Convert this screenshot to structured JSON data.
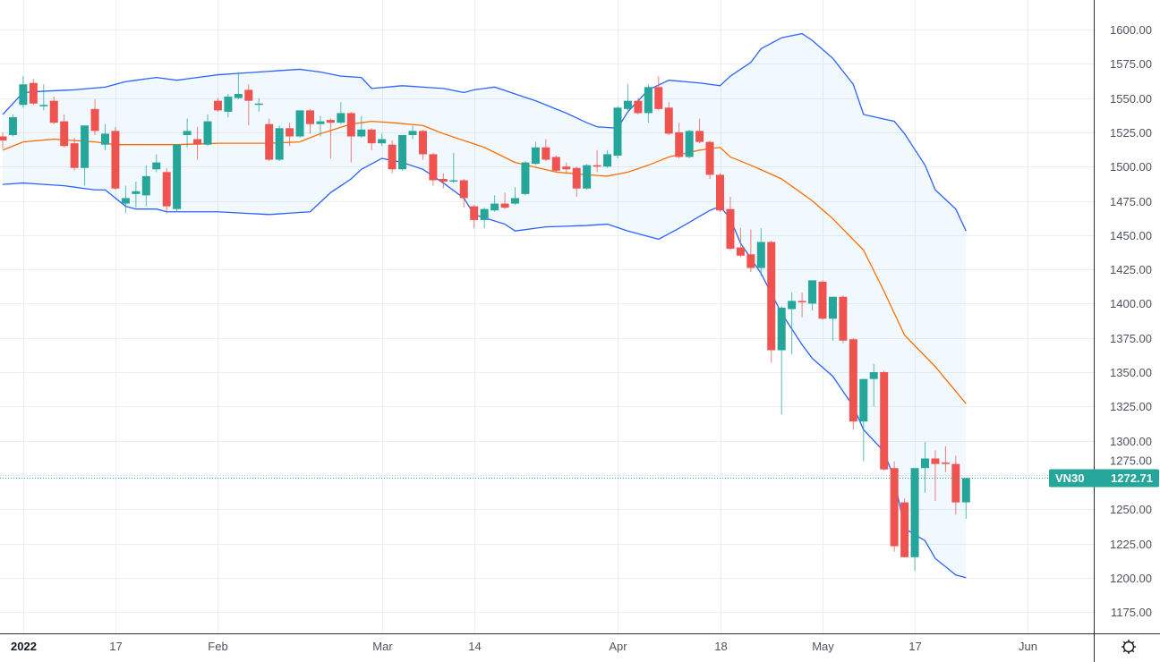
{
  "chart_data": {
    "type": "candlestick",
    "symbol": "VN30",
    "last_price": "1272.71",
    "colors": {
      "up": "#26a69a",
      "down": "#ef5350",
      "bb_bands": "#2962ff",
      "bb_basis": "#ff6d00",
      "bb_fill": "#2196f3"
    },
    "ylim": [
      1160,
      1612
    ],
    "y_ticks": [
      "1600.00",
      "1575.00",
      "1550.00",
      "1525.00",
      "1500.00",
      "1475.00",
      "1450.00",
      "1425.00",
      "1400.00",
      "1375.00",
      "1350.00",
      "1325.00",
      "1300.00",
      "1275.00",
      "1250.00",
      "1225.00",
      "1200.00",
      "1175.00"
    ],
    "x_ticks": [
      {
        "label": "2022",
        "date": "2022-01-04",
        "bold": true
      },
      {
        "label": "17",
        "date": "2022-01-17"
      },
      {
        "label": "Feb",
        "date": "2022-02-07"
      },
      {
        "label": "Mar",
        "date": "2022-03-01"
      },
      {
        "label": "14",
        "date": "2022-03-14"
      },
      {
        "label": "Apr",
        "date": "2022-04-01"
      },
      {
        "label": "18",
        "date": "2022-04-18"
      },
      {
        "label": "May",
        "date": "2022-05-04"
      },
      {
        "label": "17",
        "date": "2022-05-17"
      },
      {
        "label": "Jun",
        "date": "2022-06-01"
      }
    ],
    "candle_fields": [
      "date",
      "open",
      "high",
      "low",
      "close"
    ],
    "candles": [
      [
        "2021-12-30",
        1522,
        1525,
        1513,
        1519
      ],
      [
        "2021-12-31",
        1523,
        1538,
        1522,
        1536
      ],
      [
        "2022-01-04",
        1545,
        1566,
        1543,
        1560
      ],
      [
        "2022-01-05",
        1561,
        1564,
        1545,
        1546
      ],
      [
        "2022-01-06",
        1544,
        1560,
        1541,
        1545
      ],
      [
        "2022-01-07",
        1548,
        1551,
        1531,
        1532
      ],
      [
        "2022-01-10",
        1533,
        1538,
        1514,
        1515
      ],
      [
        "2022-01-11",
        1517,
        1521,
        1497,
        1499
      ],
      [
        "2022-01-12",
        1499,
        1530,
        1486,
        1530
      ],
      [
        "2022-01-13",
        1542,
        1549,
        1523,
        1526
      ],
      [
        "2022-01-14",
        1516,
        1531,
        1512,
        1524
      ],
      [
        "2022-01-17",
        1526,
        1529,
        1483,
        1484
      ],
      [
        "2022-01-18",
        1473,
        1486,
        1466,
        1477
      ],
      [
        "2022-01-19",
        1480,
        1489,
        1470,
        1482
      ],
      [
        "2022-01-20",
        1479,
        1501,
        1471,
        1493
      ],
      [
        "2022-01-21",
        1498,
        1509,
        1496,
        1503
      ],
      [
        "2022-01-24",
        1496,
        1499,
        1466,
        1471
      ],
      [
        "2022-01-25",
        1469,
        1516,
        1467,
        1516
      ],
      [
        "2022-01-26",
        1523,
        1535,
        1514,
        1526
      ],
      [
        "2022-01-27",
        1520,
        1529,
        1505,
        1516
      ],
      [
        "2022-01-28",
        1516,
        1538,
        1515,
        1533
      ],
      [
        "2022-02-07",
        1548,
        1550,
        1540,
        1541
      ],
      [
        "2022-02-08",
        1540,
        1553,
        1536,
        1551
      ],
      [
        "2022-02-09",
        1550,
        1569,
        1549,
        1553
      ],
      [
        "2022-02-10",
        1556,
        1560,
        1530,
        1548
      ],
      [
        "2022-02-11",
        1545,
        1550,
        1540,
        1546
      ],
      [
        "2022-02-14",
        1531,
        1535,
        1504,
        1505
      ],
      [
        "2022-02-15",
        1505,
        1530,
        1504,
        1528
      ],
      [
        "2022-02-16",
        1528,
        1532,
        1515,
        1522
      ],
      [
        "2022-02-17",
        1522,
        1541,
        1521,
        1541
      ],
      [
        "2022-02-18",
        1541,
        1542,
        1524,
        1531
      ],
      [
        "2022-02-21",
        1531,
        1537,
        1522,
        1533
      ],
      [
        "2022-02-22",
        1534,
        1535,
        1506,
        1532
      ],
      [
        "2022-02-23",
        1532,
        1547,
        1531,
        1539
      ],
      [
        "2022-02-24",
        1539,
        1540,
        1503,
        1522
      ],
      [
        "2022-02-25",
        1522,
        1537,
        1521,
        1527
      ],
      [
        "2022-02-28",
        1527,
        1528,
        1512,
        1517
      ],
      [
        "2022-03-01",
        1517,
        1524,
        1515,
        1520
      ],
      [
        "2022-03-02",
        1516,
        1519,
        1495,
        1498
      ],
      [
        "2022-03-03",
        1498,
        1523,
        1497,
        1523
      ],
      [
        "2022-03-04",
        1523,
        1530,
        1520,
        1526
      ],
      [
        "2022-03-07",
        1526,
        1527,
        1505,
        1509
      ],
      [
        "2022-03-08",
        1509,
        1510,
        1486,
        1490
      ],
      [
        "2022-03-09",
        1491,
        1495,
        1484,
        1489
      ],
      [
        "2022-03-10",
        1489,
        1510,
        1488,
        1490
      ],
      [
        "2022-03-11",
        1490,
        1491,
        1470,
        1477
      ],
      [
        "2022-03-14",
        1471,
        1472,
        1455,
        1461
      ],
      [
        "2022-03-15",
        1461,
        1470,
        1455,
        1469
      ],
      [
        "2022-03-16",
        1468,
        1479,
        1467,
        1473
      ],
      [
        "2022-03-17",
        1473,
        1481,
        1469,
        1470
      ],
      [
        "2022-03-18",
        1473,
        1485,
        1472,
        1477
      ],
      [
        "2022-03-21",
        1480,
        1504,
        1479,
        1503
      ],
      [
        "2022-03-22",
        1502,
        1518,
        1501,
        1514
      ],
      [
        "2022-03-23",
        1514,
        1520,
        1504,
        1505
      ],
      [
        "2022-03-24",
        1507,
        1508,
        1496,
        1497
      ],
      [
        "2022-03-25",
        1500,
        1503,
        1495,
        1498
      ],
      [
        "2022-03-28",
        1499,
        1500,
        1478,
        1484
      ],
      [
        "2022-03-29",
        1484,
        1502,
        1483,
        1501
      ],
      [
        "2022-03-30",
        1501,
        1512,
        1496,
        1500
      ],
      [
        "2022-03-31",
        1500,
        1512,
        1499,
        1509
      ],
      [
        "2022-04-01",
        1508,
        1544,
        1506,
        1543
      ],
      [
        "2022-04-04",
        1542,
        1560,
        1541,
        1548
      ],
      [
        "2022-04-05",
        1548,
        1550,
        1538,
        1539
      ],
      [
        "2022-04-06",
        1539,
        1560,
        1532,
        1558
      ],
      [
        "2022-04-07",
        1558,
        1566,
        1541,
        1542
      ],
      [
        "2022-04-08",
        1543,
        1547,
        1523,
        1524
      ],
      [
        "2022-04-12",
        1525,
        1532,
        1506,
        1507
      ],
      [
        "2022-04-13",
        1507,
        1527,
        1506,
        1526
      ],
      [
        "2022-04-14",
        1526,
        1535,
        1517,
        1518
      ],
      [
        "2022-04-15",
        1518,
        1519,
        1491,
        1494
      ],
      [
        "2022-04-18",
        1494,
        1495,
        1467,
        1468
      ],
      [
        "2022-04-19",
        1469,
        1478,
        1439,
        1440
      ],
      [
        "2022-04-20",
        1441,
        1455,
        1434,
        1435
      ],
      [
        "2022-04-21",
        1436,
        1454,
        1423,
        1426
      ],
      [
        "2022-04-22",
        1426,
        1455,
        1420,
        1445
      ],
      [
        "2022-04-25",
        1445,
        1446,
        1357,
        1366
      ],
      [
        "2022-04-26",
        1366,
        1398,
        1319,
        1397
      ],
      [
        "2022-04-27",
        1396,
        1408,
        1363,
        1402
      ],
      [
        "2022-04-28",
        1402,
        1408,
        1390,
        1401
      ],
      [
        "2022-04-29",
        1400,
        1417,
        1395,
        1417
      ],
      [
        "2022-05-04",
        1416,
        1417,
        1388,
        1389
      ],
      [
        "2022-05-05",
        1389,
        1405,
        1373,
        1405
      ],
      [
        "2022-05-06",
        1405,
        1406,
        1371,
        1373
      ],
      [
        "2022-05-09",
        1374,
        1375,
        1308,
        1314
      ],
      [
        "2022-05-10",
        1314,
        1345,
        1285,
        1345
      ],
      [
        "2022-05-11",
        1345,
        1356,
        1325,
        1350
      ],
      [
        "2022-05-12",
        1350,
        1351,
        1278,
        1279
      ],
      [
        "2022-05-13",
        1280,
        1285,
        1219,
        1223
      ],
      [
        "2022-05-16",
        1255,
        1258,
        1215,
        1215
      ],
      [
        "2022-05-17",
        1215,
        1280,
        1205,
        1280
      ],
      [
        "2022-05-18",
        1280,
        1299,
        1262,
        1287
      ],
      [
        "2022-05-19",
        1287,
        1293,
        1256,
        1283
      ],
      [
        "2022-05-20",
        1284,
        1296,
        1277,
        1283
      ],
      [
        "2022-05-23",
        1283,
        1289,
        1246,
        1255
      ],
      [
        "2022-05-24",
        1255,
        1273,
        1243,
        1272.71
      ]
    ],
    "bollinger": {
      "upper": [
        [
          "2021-12-30",
          1538
        ],
        [
          "2022-01-04",
          1554
        ],
        [
          "2022-01-06",
          1555
        ],
        [
          "2022-01-11",
          1556
        ],
        [
          "2022-01-14",
          1558
        ],
        [
          "2022-01-18",
          1562
        ],
        [
          "2022-01-21",
          1565
        ],
        [
          "2022-01-25",
          1563
        ],
        [
          "2022-02-07",
          1567
        ],
        [
          "2022-02-11",
          1569
        ],
        [
          "2022-02-17",
          1571
        ],
        [
          "2022-02-21",
          1569
        ],
        [
          "2022-02-23",
          1566
        ],
        [
          "2022-02-25",
          1565
        ],
        [
          "2022-02-28",
          1557
        ],
        [
          "2022-03-03",
          1559
        ],
        [
          "2022-03-09",
          1557
        ],
        [
          "2022-03-11",
          1554
        ],
        [
          "2022-03-14",
          1556
        ],
        [
          "2022-03-16",
          1558
        ],
        [
          "2022-03-22",
          1548
        ],
        [
          "2022-03-25",
          1539
        ],
        [
          "2022-03-29",
          1532
        ],
        [
          "2022-03-30",
          1529
        ],
        [
          "2022-04-01",
          1528
        ],
        [
          "2022-04-04",
          1540
        ],
        [
          "2022-04-06",
          1556
        ],
        [
          "2022-04-08",
          1563
        ],
        [
          "2022-04-14",
          1561
        ],
        [
          "2022-04-18",
          1559
        ],
        [
          "2022-04-19",
          1566
        ],
        [
          "2022-04-21",
          1576
        ],
        [
          "2022-04-22",
          1586
        ],
        [
          "2022-04-26",
          1594
        ],
        [
          "2022-04-28",
          1597
        ],
        [
          "2022-04-29",
          1592
        ],
        [
          "2022-05-05",
          1579
        ],
        [
          "2022-05-09",
          1560
        ],
        [
          "2022-05-10",
          1538
        ],
        [
          "2022-05-13",
          1533
        ],
        [
          "2022-05-16",
          1524
        ],
        [
          "2022-05-18",
          1501
        ],
        [
          "2022-05-19",
          1483
        ],
        [
          "2022-05-23",
          1469
        ],
        [
          "2022-05-24",
          1453
        ]
      ],
      "basis": [
        [
          "2021-12-30",
          1512
        ],
        [
          "2022-01-04",
          1518
        ],
        [
          "2022-01-07",
          1520
        ],
        [
          "2022-01-13",
          1518
        ],
        [
          "2022-01-17",
          1516
        ],
        [
          "2022-01-20",
          1516
        ],
        [
          "2022-01-25",
          1516
        ],
        [
          "2022-02-07",
          1517
        ],
        [
          "2022-02-14",
          1517
        ],
        [
          "2022-02-17",
          1518
        ],
        [
          "2022-02-21",
          1524
        ],
        [
          "2022-02-24",
          1531
        ],
        [
          "2022-02-28",
          1533
        ],
        [
          "2022-03-02",
          1532
        ],
        [
          "2022-03-07",
          1530
        ],
        [
          "2022-03-09",
          1524
        ],
        [
          "2022-03-15",
          1514
        ],
        [
          "2022-03-18",
          1503
        ],
        [
          "2022-03-24",
          1496
        ],
        [
          "2022-03-29",
          1494
        ],
        [
          "2022-03-31",
          1493
        ],
        [
          "2022-04-04",
          1496
        ],
        [
          "2022-04-06",
          1501
        ],
        [
          "2022-04-08",
          1507
        ],
        [
          "2022-04-14",
          1512
        ],
        [
          "2022-04-18",
          1514
        ],
        [
          "2022-04-19",
          1507
        ],
        [
          "2022-04-21",
          1501
        ],
        [
          "2022-04-26",
          1491
        ],
        [
          "2022-04-29",
          1475
        ],
        [
          "2022-05-05",
          1462
        ],
        [
          "2022-05-10",
          1439
        ],
        [
          "2022-05-12",
          1409
        ],
        [
          "2022-05-16",
          1377
        ],
        [
          "2022-05-19",
          1354
        ],
        [
          "2022-05-24",
          1327
        ]
      ],
      "lower": [
        [
          "2021-12-30",
          1487
        ],
        [
          "2022-01-04",
          1488
        ],
        [
          "2022-01-10",
          1486
        ],
        [
          "2022-01-13",
          1483
        ],
        [
          "2022-01-14",
          1483
        ],
        [
          "2022-01-18",
          1471
        ],
        [
          "2022-01-19",
          1469
        ],
        [
          "2022-01-21",
          1469
        ],
        [
          "2022-01-24",
          1467
        ],
        [
          "2022-02-07",
          1467
        ],
        [
          "2022-02-14",
          1465
        ],
        [
          "2022-02-18",
          1467
        ],
        [
          "2022-02-22",
          1481
        ],
        [
          "2022-02-24",
          1491
        ],
        [
          "2022-02-25",
          1498
        ],
        [
          "2022-03-01",
          1506
        ],
        [
          "2022-03-03",
          1503
        ],
        [
          "2022-03-07",
          1498
        ],
        [
          "2022-03-09",
          1488
        ],
        [
          "2022-03-11",
          1477
        ],
        [
          "2022-03-14",
          1465
        ],
        [
          "2022-03-17",
          1458
        ],
        [
          "2022-03-18",
          1453
        ],
        [
          "2022-03-23",
          1456
        ],
        [
          "2022-03-29",
          1457
        ],
        [
          "2022-03-31",
          1458
        ],
        [
          "2022-04-04",
          1453
        ],
        [
          "2022-04-06",
          1449
        ],
        [
          "2022-04-07",
          1447
        ],
        [
          "2022-04-12",
          1455
        ],
        [
          "2022-04-15",
          1468
        ],
        [
          "2022-04-18",
          1471
        ],
        [
          "2022-04-19",
          1462
        ],
        [
          "2022-04-20",
          1444
        ],
        [
          "2022-04-22",
          1422
        ],
        [
          "2022-04-26",
          1393
        ],
        [
          "2022-04-28",
          1370
        ],
        [
          "2022-04-29",
          1360
        ],
        [
          "2022-05-05",
          1347
        ],
        [
          "2022-05-09",
          1325
        ],
        [
          "2022-05-10",
          1308
        ],
        [
          "2022-05-12",
          1292
        ],
        [
          "2022-05-13",
          1272
        ],
        [
          "2022-05-16",
          1236
        ],
        [
          "2022-05-18",
          1227
        ],
        [
          "2022-05-19",
          1214
        ],
        [
          "2022-05-23",
          1202
        ],
        [
          "2022-05-24",
          1200
        ]
      ]
    },
    "grid": true,
    "settings_icon": "gear-icon"
  }
}
